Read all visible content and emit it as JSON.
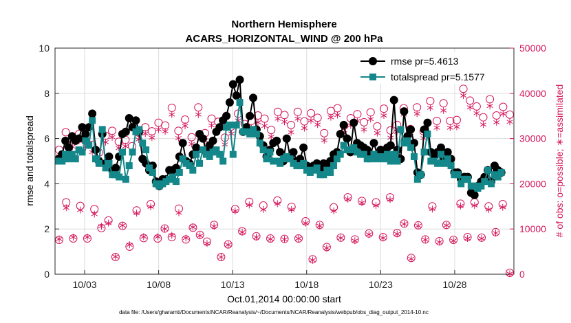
{
  "chart_data": {
    "type": "line",
    "title": "Northern Hemisphere",
    "subtitle": "ACARS_HORIZONTAL_WIND @ 200 hPa",
    "xlabel": "Oct.01,2014 00:00:00 start",
    "ylabel": "rmse and totalspread",
    "ylabel_right": "# of obs: o=possible; ∗=assimilated",
    "footer": "data file: /Users/gharamti/Documents/NCAR/Reanalysis/~/Documents/NCAR/Reanalysis/webpub/obs_diag_output_2014-10.nc",
    "x_ticks": [
      3,
      8,
      13,
      18,
      23,
      28
    ],
    "x_tick_labels": [
      "10/03",
      "10/08",
      "10/13",
      "10/18",
      "10/23",
      "10/28"
    ],
    "xlim": [
      1,
      32
    ],
    "ylim": [
      0,
      10
    ],
    "y_ticks": [
      "0",
      "2",
      "4",
      "6",
      "8",
      "10"
    ],
    "ylim_right": [
      0,
      50000
    ],
    "y_ticks_right": [
      "0",
      "10000",
      "20000",
      "30000",
      "40000",
      "50000"
    ],
    "legend": [
      "rmse pr=5.4613",
      "totalspread pr=5.1577"
    ],
    "grid": true,
    "series": [
      {
        "name": "rmse",
        "color": "#000000",
        "values": [
          5.1,
          5.3,
          5.9,
          5.6,
          6.1,
          5.9,
          6.0,
          6.5,
          6.2,
          6.5,
          7.1,
          5.5,
          5.0,
          6.2,
          4.9,
          5.2,
          4.6,
          4.7,
          5.2,
          6.2,
          6.3,
          6.9,
          6.5,
          6.8,
          6.3,
          5.1,
          4.9,
          4.6,
          4.8,
          4.1,
          3.9,
          4.2,
          4.2,
          4.6,
          4.6,
          4.7,
          5.2,
          5.8,
          5.0,
          4.9,
          5.3,
          5.6,
          6.2,
          6.0,
          5.4,
          5.7,
          5.9,
          6.3,
          6.5,
          6.8,
          7.0,
          7.6,
          8.4,
          7.9,
          8.6,
          6.3,
          6.5,
          7.0,
          7.8,
          6.4,
          6.1,
          5.7,
          5.2,
          5.5,
          5.8,
          5.9,
          5.4,
          5.0,
          6.0,
          5.2,
          5.4,
          5.0,
          5.1,
          5.6,
          4.8,
          4.7,
          4.8,
          4.9,
          4.6,
          4.9,
          4.7,
          5.0,
          5.3,
          5.4,
          6.2,
          6.6,
          6.0,
          5.4,
          6.7,
          5.8,
          5.7,
          5.6,
          5.5,
          5.3,
          5.8,
          5.3,
          5.5,
          5.3,
          5.6,
          5.7,
          7.7,
          5.5,
          5.1,
          7.2,
          6.1,
          6.4,
          5.8,
          4.5,
          4.4,
          6.4,
          6.7,
          5.4,
          5.2,
          5.4,
          5.6,
          5.1,
          5.4,
          5.1,
          4.5,
          4.5,
          4.2,
          4.3,
          4.3,
          3.6,
          3.5,
          3.9,
          4.1,
          4.3,
          4.6,
          4.1,
          4.8,
          4.6,
          4.5
        ]
      },
      {
        "name": "totalspread",
        "color": "#138789",
        "values": [
          5.0,
          5.0,
          5.3,
          5.1,
          5.3,
          5.1,
          5.5,
          5.4,
          5.9,
          5.7,
          6.8,
          5.1,
          4.9,
          6.4,
          4.7,
          4.9,
          4.4,
          4.4,
          4.3,
          5.4,
          4.2,
          4.8,
          5.4,
          6.3,
          6.4,
          5.8,
          5.5,
          4.7,
          4.5,
          4.0,
          3.9,
          4.0,
          4.1,
          4.2,
          4.3,
          4.1,
          4.5,
          5.1,
          4.9,
          4.8,
          4.6,
          5.3,
          4.9,
          5.5,
          5.3,
          5.2,
          5.4,
          5.5,
          5.3,
          5.0,
          6.5,
          6.6,
          5.3,
          6.6,
          7.6,
          6.3,
          6.3,
          6.2,
          6.4,
          6.2,
          5.8,
          5.5,
          5.1,
          5.4,
          5.0,
          5.0,
          4.9,
          5.1,
          5.2,
          5.1,
          4.9,
          4.8,
          4.8,
          4.9,
          4.6,
          4.5,
          4.6,
          4.7,
          4.4,
          4.4,
          4.6,
          4.5,
          4.8,
          5.1,
          5.3,
          5.7,
          5.5,
          5.5,
          5.6,
          5.4,
          5.3,
          5.3,
          5.1,
          5.1,
          5.3,
          5.1,
          5.2,
          5.1,
          5.3,
          5.0,
          5.3,
          5.0,
          6.4,
          5.8,
          5.9,
          5.6,
          5.2,
          4.2,
          4.4,
          5.4,
          6.2,
          5.0,
          5.0,
          4.9,
          5.3,
          4.9,
          5.1,
          4.8,
          4.4,
          4.4,
          4.0,
          4.2,
          4.2,
          3.9,
          3.9,
          3.8,
          3.9,
          4.1,
          4.6,
          4.0,
          4.4,
          4.3,
          4.5
        ]
      }
    ],
    "obs_possible_high": [
      27500,
      31400,
      29800,
      31000,
      29400,
      28600,
      26900,
      30600,
      31700,
      29300,
      29700,
      28300,
      31300,
      32500,
      31600,
      33500,
      32900,
      36800,
      31700,
      34200,
      30300,
      36900,
      31200,
      34400,
      33700,
      30200,
      32700,
      35500,
      33200,
      33900,
      35100,
      34400,
      31900,
      35900,
      35200,
      33000,
      35900,
      33800,
      35600,
      34600,
      31200,
      36100,
      36700,
      32800,
      34500,
      35400,
      33600,
      35800,
      32700,
      36600,
      31800,
      33000,
      36700,
      32100,
      36900,
      31600,
      38300,
      33900,
      37800,
      33900,
      34100,
      41000,
      38400,
      37100,
      34700,
      38700,
      35100,
      37000,
      35300
    ],
    "obs_possible_low": [
      7600,
      15900,
      7900,
      15100,
      7900,
      14400,
      10200,
      11900,
      3800,
      10700,
      6100,
      14100,
      8000,
      15500,
      7900,
      10100,
      8200,
      14500,
      7700,
      10300,
      8700,
      7200,
      10900,
      3800,
      6600,
      14400,
      9500,
      16000,
      8400,
      15200,
      7900,
      16300,
      7800,
      14900,
      7900,
      11700,
      3300,
      10900,
      6000,
      14800,
      8100,
      17000,
      7700,
      16200,
      9000,
      15900,
      8200,
      17000,
      9100,
      11200,
      3600,
      10800,
      7700,
      15000,
      7300,
      10900,
      7600,
      15600,
      8200,
      15900,
      8100,
      15000,
      9300,
      15500,
      300
    ],
    "obs_assim_high": [
      26100,
      29500,
      28200,
      29500,
      28100,
      27000,
      25400,
      29200,
      30300,
      27900,
      28300,
      26900,
      29800,
      31100,
      30200,
      32000,
      31600,
      35300,
      30100,
      32800,
      28800,
      35300,
      29600,
      32900,
      32200,
      28700,
      31100,
      34000,
      31700,
      32400,
      33600,
      32800,
      30400,
      34400,
      33700,
      31400,
      34400,
      32300,
      34000,
      33100,
      29600,
      34700,
      35200,
      31200,
      32900,
      33900,
      32000,
      34300,
      31200,
      35100,
      30200,
      31500,
      35300,
      30600,
      35500,
      30100,
      36800,
      32400,
      36200,
      32400,
      32600,
      39500,
      36900,
      35600,
      33100,
      37200,
      33600,
      35500,
      33700
    ],
    "obs_assim_low": [
      7800,
      14700,
      8200,
      14200,
      8200,
      13300,
      10600,
      11300,
      3900,
      10800,
      6500,
      13500,
      8300,
      14900,
      8300,
      10000,
      8600,
      13600,
      8000,
      10400,
      8500,
      6800,
      10600,
      3800,
      6500,
      14000,
      9300,
      15300,
      8200,
      14300,
      7800,
      15600,
      7700,
      14300,
      7900,
      11300,
      3100,
      10700,
      5800,
      14000,
      8000,
      16600,
      7400,
      15800,
      8800,
      15200,
      8000,
      16500,
      8900,
      11100,
      3400,
      10700,
      7600,
      14400,
      7100,
      10800,
      7400,
      15100,
      7900,
      15200,
      7900,
      14300,
      9100,
      14800,
      100
    ]
  }
}
